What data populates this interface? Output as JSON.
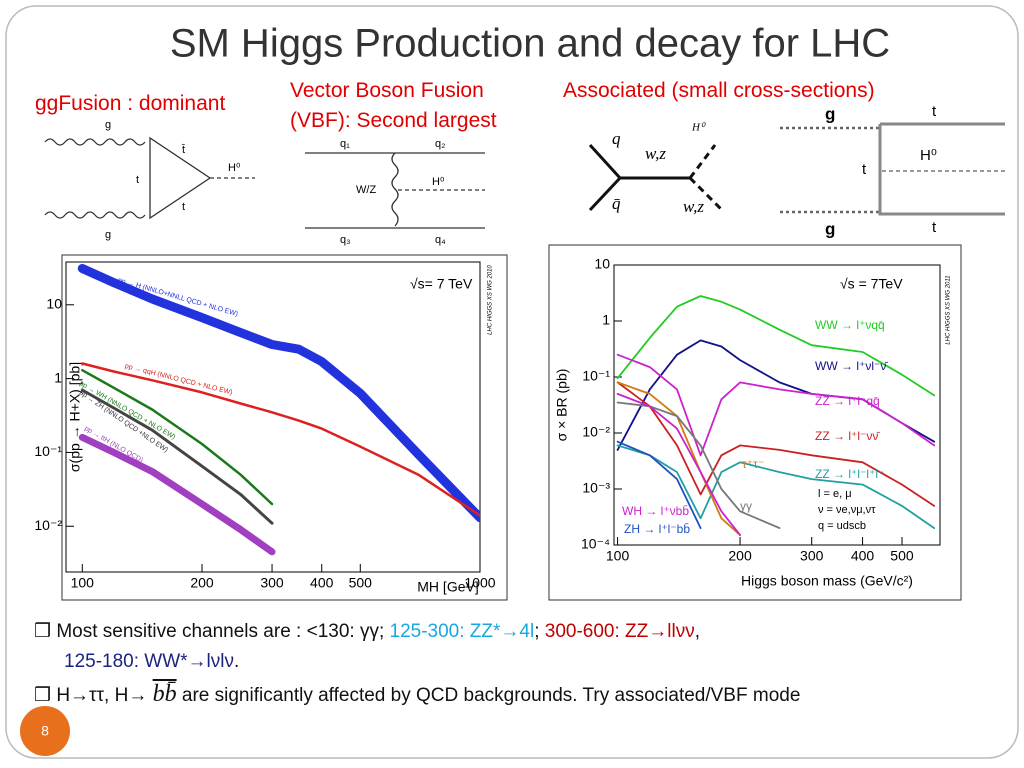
{
  "title": "SM Higgs Production and decay  for LHC",
  "headings": {
    "ggf": "ggFusion : dominant",
    "vbf1": "Vector Boson Fusion",
    "vbf2": "(VBF): Second largest",
    "assoc": "Associated (small cross-sections)"
  },
  "diagrams": {
    "ggf": [
      "g",
      "t̄",
      "t",
      "H⁰",
      "t",
      "g"
    ],
    "vbf": [
      "q₁",
      "q₂",
      "W/Z",
      "H⁰",
      "q₃",
      "q₄"
    ],
    "assoc1": [
      "q",
      "q̄",
      "w,z",
      "H⁰",
      "w,z"
    ],
    "assoc2": [
      "g",
      "t",
      "t",
      "H⁰",
      "g",
      "t"
    ]
  },
  "chart_data": [
    {
      "type": "line",
      "ylabel": "σ(pp → H+X) [pb]",
      "xlabel": "MH [GeV]",
      "xscale": "log",
      "yscale": "log",
      "annotations": [
        "√s= 7 TeV",
        "LHC HIGGS XS WG 2010"
      ],
      "x": [
        100,
        120,
        150,
        200,
        250,
        300,
        350,
        400,
        500,
        700,
        1000
      ],
      "xlim": [
        91,
        1000
      ],
      "xticks": [
        100,
        200,
        300,
        400,
        500,
        1000
      ],
      "ylim": [
        0.0024,
        38
      ],
      "yticks": [
        {
          "value": 0.01,
          "label": "10⁻²"
        },
        {
          "value": 0.1,
          "label": "10⁻¹"
        },
        1,
        10
      ],
      "series": [
        {
          "name": "pp → H (NNLO+NNLL QCD + NLO EW)",
          "color": "#2233dd",
          "values": [
            31,
            20,
            12,
            6.7,
            4.2,
            2.9,
            2.5,
            1.7,
            0.63,
            0.094,
            0.013
          ]
        },
        {
          "name": "pp → qqH (NNLO QCD + NLO EW)",
          "color": "#dd2020",
          "values": [
            1.6,
            1.25,
            0.95,
            0.65,
            0.46,
            0.35,
            0.27,
            0.21,
            0.12,
            0.05,
            0.014
          ]
        },
        {
          "name": "pp → WH (NNLO QCD + NLO EW)",
          "color": "#1a7a1a",
          "values": [
            1.3,
            0.75,
            0.38,
            0.13,
            0.05,
            0.02,
            null,
            null,
            null,
            null,
            null
          ]
        },
        {
          "name": "pp → ZH (NNLO QCD +NLO EW)",
          "color": "#444444",
          "values": [
            0.7,
            0.4,
            0.2,
            0.065,
            0.027,
            0.011,
            null,
            null,
            null,
            null,
            null
          ]
        },
        {
          "name": "pp → ttH (NLO QCD)",
          "color": "#a040c0",
          "values": [
            0.16,
            0.1,
            0.055,
            0.02,
            0.009,
            0.0045,
            null,
            null,
            null,
            null,
            null
          ]
        }
      ]
    },
    {
      "type": "line",
      "ylabel": "σ × BR (pb)",
      "xlabel": "Higgs boson mass (GeV/c²)",
      "xscale": "log",
      "yscale": "log",
      "annotations": [
        "√s = 7TeV",
        "LHC HIGGS XS WG 2011",
        "l = e, μ",
        "ν = νe,νμ,ντ",
        "q = udscb"
      ],
      "x": [
        100,
        120,
        140,
        160,
        180,
        200,
        250,
        300,
        400,
        500,
        600
      ],
      "xlim": [
        98,
        620
      ],
      "xticks": [
        100,
        200,
        300,
        400,
        500
      ],
      "ylim": [
        0.0001,
        10
      ],
      "yticks": [
        {
          "value": 0.0001,
          "label": "10⁻⁴"
        },
        {
          "value": 0.001,
          "label": "10⁻³"
        },
        {
          "value": 0.01,
          "label": "10⁻²"
        },
        {
          "value": 0.1,
          "label": "10⁻¹"
        },
        1,
        10
      ],
      "series": [
        {
          "name": "WW → l⁺νqq̄",
          "color": "#22cc22",
          "values": [
            0.095,
            0.5,
            1.8,
            2.8,
            2.2,
            1.6,
            0.7,
            0.37,
            0.28,
            0.11,
            0.047
          ]
        },
        {
          "name": "WW → l⁺νl⁻ν̄",
          "color": "#10108a",
          "values": [
            0.005,
            0.06,
            0.25,
            0.45,
            0.35,
            0.2,
            0.08,
            0.05,
            0.04,
            0.015,
            0.007
          ]
        },
        {
          "name": "ZZ → l⁺l⁻qq̄",
          "color": "#cc22cc",
          "values": [
            0.25,
            0.15,
            0.06,
            0.004,
            0.04,
            0.08,
            0.06,
            0.05,
            0.04,
            0.015,
            0.006
          ]
        },
        {
          "name": "ZZ → l⁺l⁻νν̄",
          "color": "#cc2020",
          "values": [
            0.08,
            0.03,
            0.006,
            0.0008,
            0.004,
            0.006,
            0.005,
            0.004,
            0.003,
            0.0012,
            0.0005
          ]
        },
        {
          "name": "ZZ → l⁺l⁻l⁺l⁻",
          "color": "#20a0a0",
          "values": [
            0.006,
            0.004,
            0.002,
            0.0003,
            0.002,
            0.003,
            0.002,
            0.0015,
            0.0012,
            0.0005,
            0.0002
          ]
        },
        {
          "name": "τ⁺τ⁻",
          "color": "#d07a10",
          "values": [
            0.08,
            0.05,
            0.02,
            0.002,
            0.0003,
            0.00015,
            null,
            null,
            null,
            null,
            null
          ]
        },
        {
          "name": "γγ",
          "color": "#777777",
          "values": [
            0.035,
            0.03,
            0.02,
            0.006,
            0.001,
            0.0004,
            0.0002,
            null,
            null,
            null,
            null
          ]
        },
        {
          "name": "WH → l⁺νbb̄",
          "color": "#cc22cc",
          "values": [
            0.05,
            0.03,
            0.012,
            0.002,
            0.0004,
            0.00015,
            null,
            null,
            null,
            null,
            null
          ]
        },
        {
          "name": "ZH → l⁺l⁻bb̄",
          "color": "#2050c0",
          "values": [
            0.007,
            0.004,
            0.0015,
            0.0002,
            null,
            null,
            null,
            null,
            null,
            null,
            null
          ]
        }
      ]
    }
  ],
  "bullets": [
    [
      "Most sensitive channels are :  <130:  γγ;  ",
      "125-300:  ZZ*→4l",
      ";   ",
      "300-600: ZZ→llνν",
      ",",
      "125-180: WW*→lνlν",
      "."
    ],
    [
      "H→ττ, H→ ",
      "bb̄",
      " are significantly affected by QCD backgrounds. Try associated/VBF mode"
    ]
  ],
  "page_number": "8"
}
